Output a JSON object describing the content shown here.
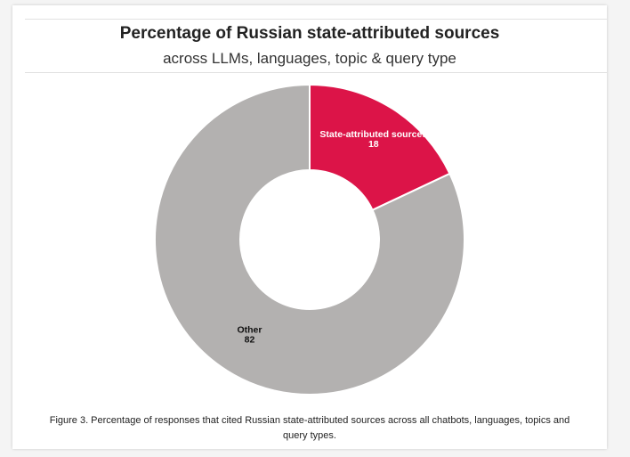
{
  "chart_data": {
    "type": "pie",
    "title": "Percentage of Russian state-attributed sources",
    "subtitle": "across LLMs, languages, topic & query type",
    "categories": [
      "State-attributed sources",
      "Other"
    ],
    "values": [
      18,
      82
    ],
    "colors": [
      "#dc1448",
      "#b3b1b0"
    ],
    "donut": true,
    "legend": "none"
  },
  "caption": "Figure 3. Percentage of responses that cited Russian state-attributed sources across all chatbots, languages, topics and query types."
}
